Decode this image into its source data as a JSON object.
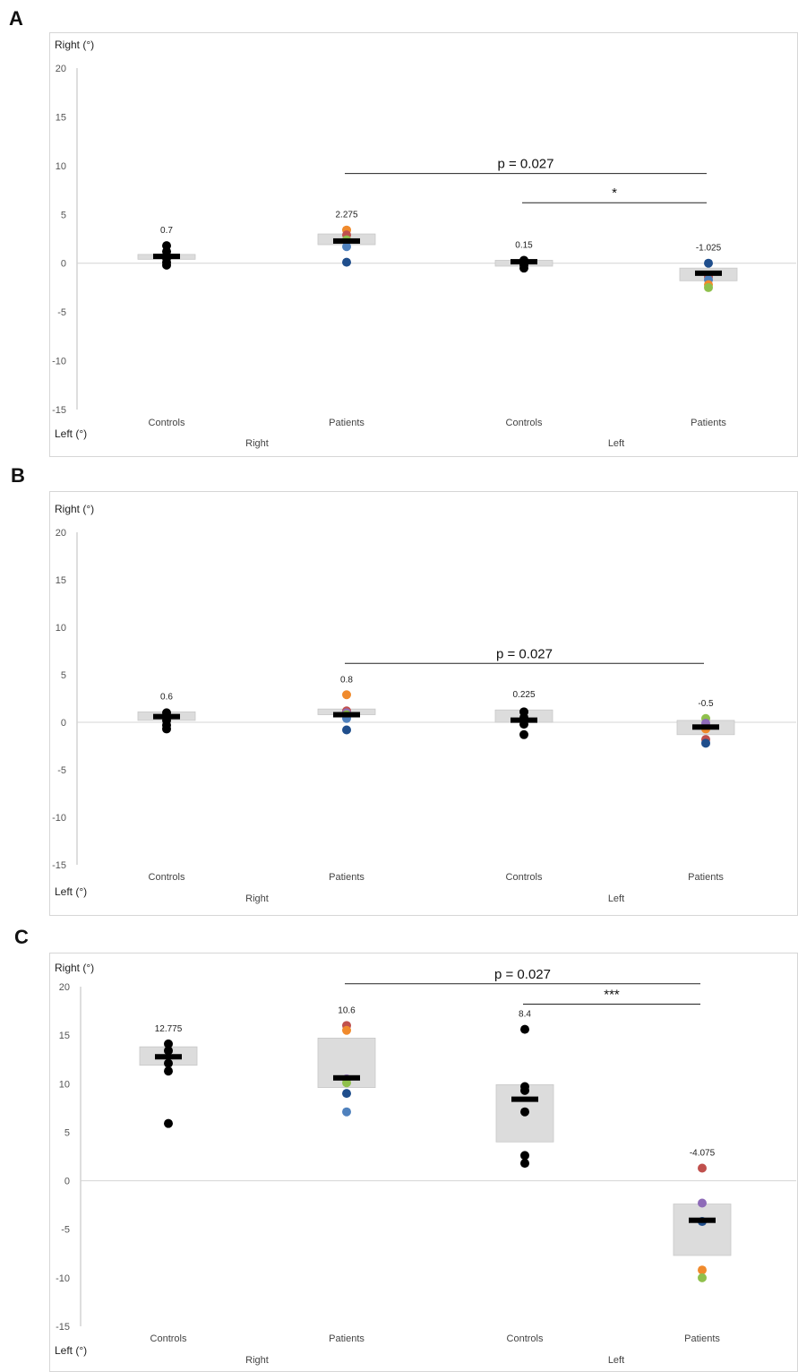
{
  "panels": [
    {
      "letter": "A",
      "y_top_label": "Right (°)",
      "y_bottom_label": "Left (°)",
      "chart_data": {
        "type": "scatter",
        "ylim": [
          -15,
          20
        ],
        "yticks": [
          20,
          15,
          10,
          5,
          0,
          -5,
          -10,
          -15
        ],
        "categories": [
          "Controls",
          "Patients",
          "Controls",
          "Patients"
        ],
        "groups": [
          "Right",
          "Left"
        ],
        "means": [
          0.7,
          2.275,
          0.15,
          -1.025
        ],
        "mean_labels": [
          "0.7",
          "2.275",
          "0.15",
          "-1.025"
        ],
        "boxes": [
          [
            0.4,
            0.9
          ],
          [
            1.9,
            3.0
          ],
          [
            -0.3,
            0.3
          ],
          [
            -1.8,
            -0.5
          ]
        ],
        "points": [
          [
            {
              "y": 1.8,
              "c": "#000000"
            },
            {
              "y": 1.2,
              "c": "#000000"
            },
            {
              "y": 0.5,
              "c": "#000000"
            },
            {
              "y": 0.1,
              "c": "#000000"
            },
            {
              "y": -0.2,
              "c": "#000000"
            }
          ],
          [
            {
              "y": 3.4,
              "c": "#f08a2c"
            },
            {
              "y": 2.9,
              "c": "#c0504d"
            },
            {
              "y": 2.4,
              "c": "#8fc04c"
            },
            {
              "y": 1.7,
              "c": "#4f81bd"
            },
            {
              "y": 0.1,
              "c": "#1f4e8c"
            }
          ],
          [
            {
              "y": 0.3,
              "c": "#000000"
            },
            {
              "y": 0.1,
              "c": "#000000"
            },
            {
              "y": -0.2,
              "c": "#000000"
            },
            {
              "y": -0.5,
              "c": "#000000"
            }
          ],
          [
            {
              "y": 0.0,
              "c": "#1f4e8c"
            },
            {
              "y": -1.4,
              "c": "#c0504d"
            },
            {
              "y": -1.7,
              "c": "#4f81bd"
            },
            {
              "y": -2.2,
              "c": "#f08a2c"
            },
            {
              "y": -2.5,
              "c": "#8fc04c"
            }
          ]
        ],
        "annotations": [
          {
            "text": "p = 0.027",
            "from": 1,
            "to": 3,
            "y": 9.2,
            "size": 15
          },
          {
            "text": "*",
            "from": 2,
            "to": 3,
            "y": 6.2,
            "size": 15
          }
        ]
      }
    },
    {
      "letter": "B",
      "y_top_label": "Right (°)",
      "y_bottom_label": "Left (°)",
      "chart_data": {
        "type": "scatter",
        "ylim": [
          -15,
          20
        ],
        "yticks": [
          20,
          15,
          10,
          5,
          0,
          -5,
          -10,
          -15
        ],
        "categories": [
          "Controls",
          "Patients",
          "Controls",
          "Patients"
        ],
        "groups": [
          "Right",
          "Left"
        ],
        "means": [
          0.6,
          0.8,
          0.225,
          -0.5
        ],
        "mean_labels": [
          "0.6",
          "0.8",
          "0.225",
          "-0.5"
        ],
        "boxes": [
          [
            0.2,
            1.1
          ],
          [
            0.8,
            1.4
          ],
          [
            0.0,
            1.3
          ],
          [
            -1.3,
            0.2
          ]
        ],
        "points": [
          [
            {
              "y": 1.0,
              "c": "#000000"
            },
            {
              "y": 0.7,
              "c": "#000000"
            },
            {
              "y": 0.2,
              "c": "#000000"
            },
            {
              "y": -0.3,
              "c": "#000000"
            },
            {
              "y": -0.7,
              "c": "#000000"
            }
          ],
          [
            {
              "y": 2.9,
              "c": "#f08a2c"
            },
            {
              "y": 1.2,
              "c": "#c0504d"
            },
            {
              "y": 1.0,
              "c": "#8e6bb8"
            },
            {
              "y": 0.8,
              "c": "#8fc04c"
            },
            {
              "y": 0.4,
              "c": "#4f81bd"
            },
            {
              "y": -0.8,
              "c": "#1f4e8c"
            }
          ],
          [
            {
              "y": 1.1,
              "c": "#000000"
            },
            {
              "y": 0.5,
              "c": "#000000"
            },
            {
              "y": -0.2,
              "c": "#000000"
            },
            {
              "y": -1.3,
              "c": "#000000"
            }
          ],
          [
            {
              "y": 0.4,
              "c": "#8fc04c"
            },
            {
              "y": -0.1,
              "c": "#8e6bb8"
            },
            {
              "y": -0.7,
              "c": "#f08a2c"
            },
            {
              "y": -1.8,
              "c": "#c0504d"
            },
            {
              "y": -2.2,
              "c": "#1f4e8c"
            }
          ]
        ],
        "annotations": [
          {
            "text": "p = 0.027",
            "from": 1,
            "to": 3,
            "y": 6.2,
            "size": 15
          }
        ]
      }
    },
    {
      "letter": "C",
      "y_top_label": "Right (°)",
      "y_bottom_label": "Left (°)",
      "chart_data": {
        "type": "scatter",
        "ylim": [
          -15,
          20
        ],
        "yticks": [
          20,
          15,
          10,
          5,
          0,
          -5,
          -10,
          -15
        ],
        "categories": [
          "Controls",
          "Patients",
          "Controls",
          "Patients"
        ],
        "groups": [
          "Right",
          "Left"
        ],
        "means": [
          12.775,
          10.6,
          8.4,
          -4.075
        ],
        "mean_labels": [
          "12.775",
          "10.6",
          "8.4",
          "-4.075"
        ],
        "boxes": [
          [
            11.9,
            13.8
          ],
          [
            9.6,
            14.7
          ],
          [
            4.0,
            9.9
          ],
          [
            -7.7,
            -2.4
          ]
        ],
        "points": [
          [
            {
              "y": 14.1,
              "c": "#000000"
            },
            {
              "y": 13.4,
              "c": "#000000"
            },
            {
              "y": 12.1,
              "c": "#000000"
            },
            {
              "y": 11.3,
              "c": "#000000"
            },
            {
              "y": 5.9,
              "c": "#000000"
            }
          ],
          [
            {
              "y": 16.0,
              "c": "#c0504d"
            },
            {
              "y": 15.5,
              "c": "#f08a2c"
            },
            {
              "y": 10.5,
              "c": "#8e6bb8"
            },
            {
              "y": 10.1,
              "c": "#8fc04c"
            },
            {
              "y": 9.0,
              "c": "#1f4e8c"
            },
            {
              "y": 7.1,
              "c": "#4f81bd"
            }
          ],
          [
            {
              "y": 15.6,
              "c": "#000000"
            },
            {
              "y": 9.7,
              "c": "#000000"
            },
            {
              "y": 9.3,
              "c": "#000000"
            },
            {
              "y": 7.1,
              "c": "#000000"
            },
            {
              "y": 2.6,
              "c": "#000000"
            },
            {
              "y": 1.8,
              "c": "#000000"
            }
          ],
          [
            {
              "y": 1.3,
              "c": "#c0504d"
            },
            {
              "y": -2.3,
              "c": "#8e6bb8"
            },
            {
              "y": -4.2,
              "c": "#1f4e8c"
            },
            {
              "y": -9.2,
              "c": "#f08a2c"
            },
            {
              "y": -10.0,
              "c": "#8fc04c"
            }
          ]
        ],
        "annotations": [
          {
            "text": "p = 0.027",
            "from": 1,
            "to": 3,
            "y": 20.3,
            "size": 15
          },
          {
            "text": "***",
            "from": 2,
            "to": 3,
            "y": 18.2,
            "size": 15
          }
        ]
      }
    }
  ]
}
